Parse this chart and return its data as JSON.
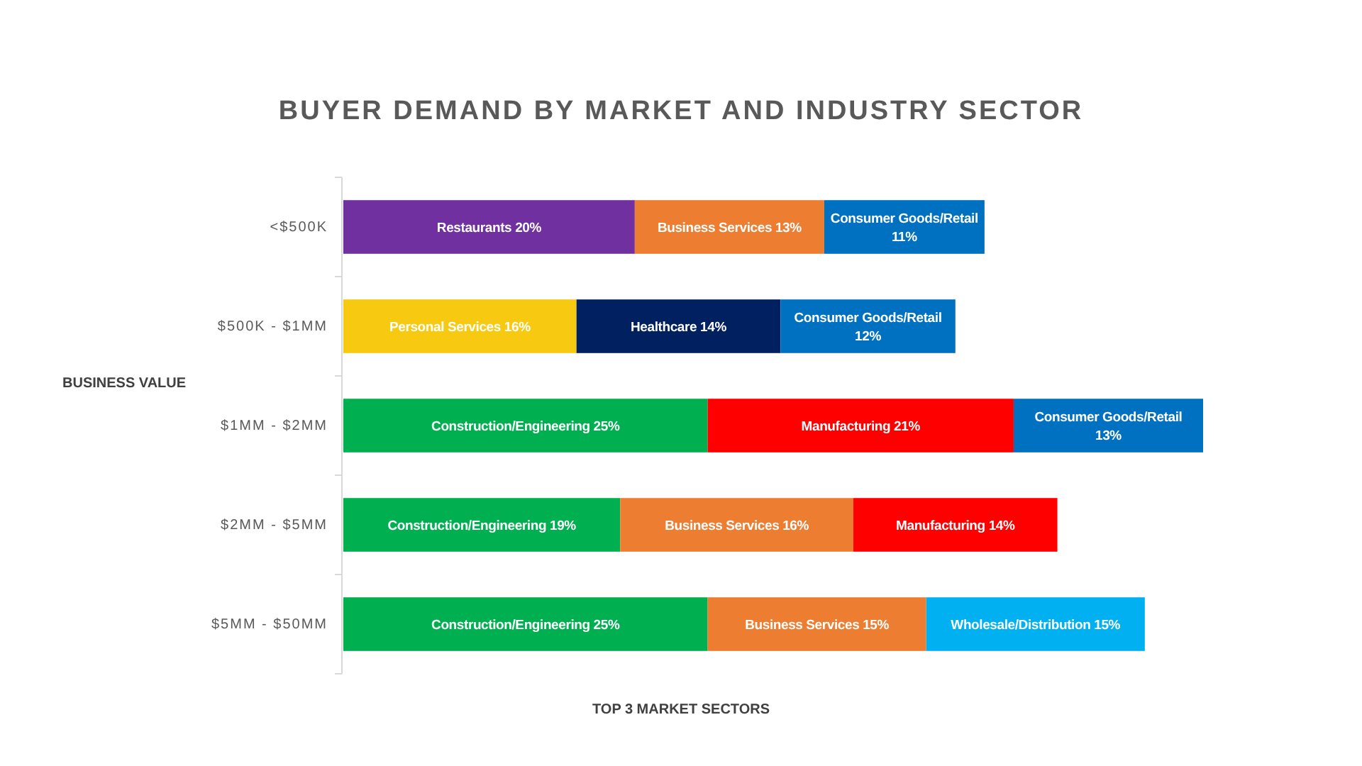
{
  "chart_data": {
    "type": "bar",
    "orientation": "horizontal",
    "stacked": true,
    "title": "BUYER DEMAND BY MARKET AND INDUSTRY SECTOR",
    "ylabel": "BUSINESS VALUE",
    "xlabel": "TOP 3 MARKET SECTORS",
    "categories": [
      "<$500K",
      "$500K - $1MM",
      "$1MM - $2MM",
      "$2MM - $5MM",
      "$5MM - $50MM"
    ],
    "series": [
      {
        "values": [
          20,
          16,
          25,
          19,
          25
        ],
        "colors": [
          "#7030a0",
          "#f7c911",
          "#00b050",
          "#00b050",
          "#00b050"
        ],
        "value_labels": [
          "Restaurants 20%",
          "Personal Services 16%",
          "Construction/Engineering 25%",
          "Construction/Engineering 19%",
          "Construction/Engineering 25%"
        ]
      },
      {
        "values": [
          13,
          14,
          21,
          16,
          15
        ],
        "colors": [
          "#ed7d31",
          "#002060",
          "#ff0000",
          "#ed7d31",
          "#ed7d31"
        ],
        "value_labels": [
          "Business Services 13%",
          "Healthcare 14%",
          "Manufacturing 21%",
          "Business Services 16%",
          "Business Services 15%"
        ]
      },
      {
        "values": [
          11,
          12,
          13,
          14,
          15
        ],
        "colors": [
          "#0070c0",
          "#0070c0",
          "#0070c0",
          "#ff0000",
          "#00b0f0"
        ],
        "value_labels": [
          "Consumer Goods/Retail 11%",
          "Consumer Goods/Retail 12%",
          "Consumer Goods/Retail 13%",
          "Manufacturing 14%",
          "Wholesale/Distribution 15%"
        ]
      }
    ],
    "data_labels": true
  }
}
